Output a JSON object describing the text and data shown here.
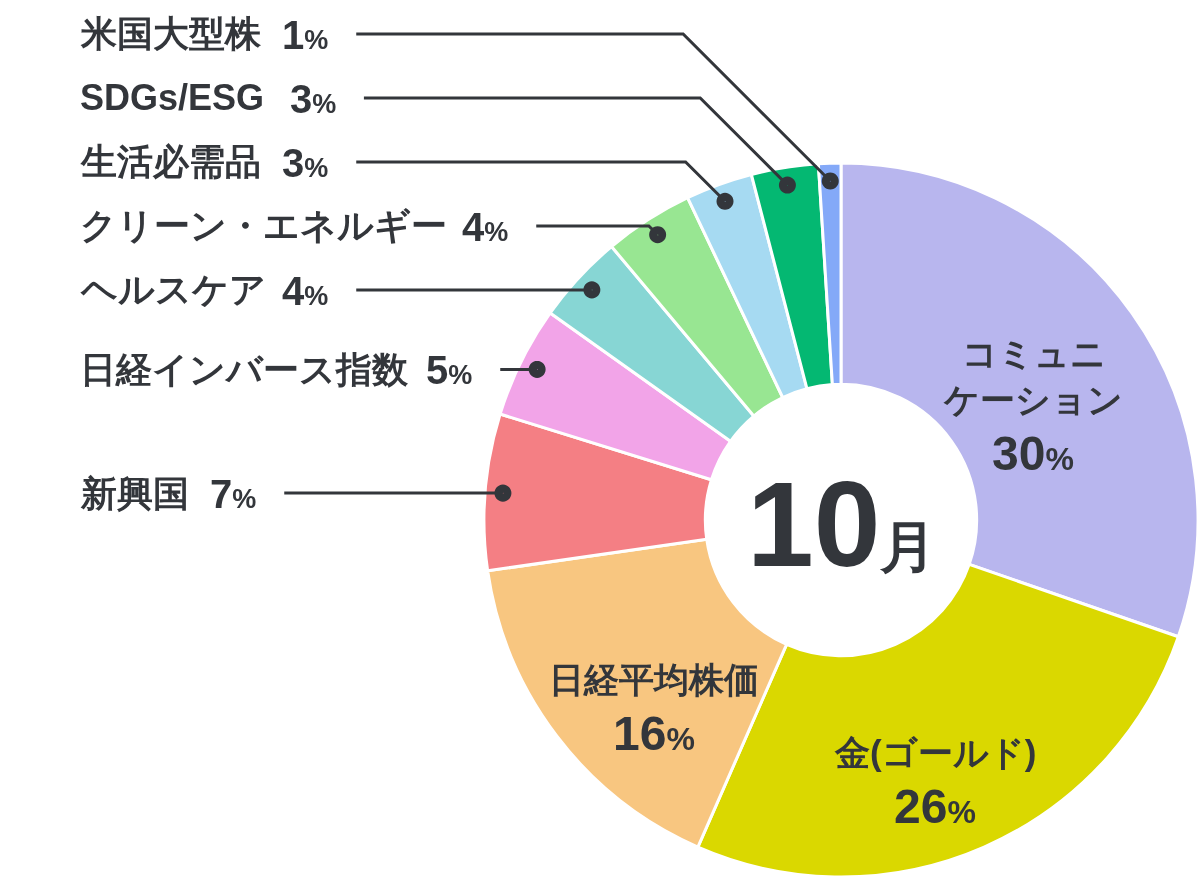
{
  "chart_data": {
    "type": "donut",
    "title": "10月",
    "categories": [
      "コミュニケーション",
      "金(ゴールド)",
      "日経平均株価",
      "新興国",
      "日経インバース指数",
      "ヘルスケア",
      "クリーン・エネルギー",
      "生活必需品",
      "SDGs/ESG",
      "米国大型株"
    ],
    "values": [
      30,
      26,
      16,
      7,
      5,
      4,
      4,
      3,
      3,
      1
    ],
    "colors": [
      "#b8b6ee",
      "#dad800",
      "#f8c680",
      "#f47f84",
      "#f2a4e8",
      "#87d6d4",
      "#98e692",
      "#a6daf2",
      "#04b872",
      "#84a9f8"
    ],
    "value_labels": [
      "30%",
      "26%",
      "16%",
      "7%",
      "5%",
      "4%",
      "4%",
      "3%",
      "3%",
      "1%"
    ]
  }
}
